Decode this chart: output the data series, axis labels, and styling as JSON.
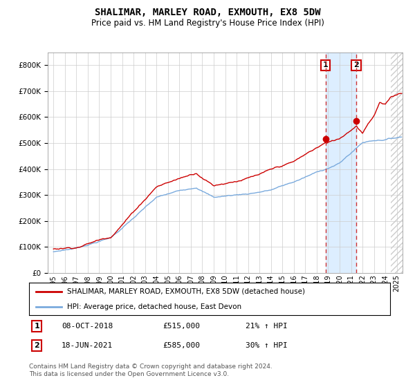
{
  "title": "SHALIMAR, MARLEY ROAD, EXMOUTH, EX8 5DW",
  "subtitle": "Price paid vs. HM Land Registry's House Price Index (HPI)",
  "legend_line1": "SHALIMAR, MARLEY ROAD, EXMOUTH, EX8 5DW (detached house)",
  "legend_line2": "HPI: Average price, detached house, East Devon",
  "sale1_label": "1",
  "sale1_date": "08-OCT-2018",
  "sale1_price": "£515,000",
  "sale1_pct": "21% ↑ HPI",
  "sale2_label": "2",
  "sale2_date": "18-JUN-2021",
  "sale2_price": "£585,000",
  "sale2_pct": "30% ↑ HPI",
  "footer": "Contains HM Land Registry data © Crown copyright and database right 2024.\nThis data is licensed under the Open Government Licence v3.0.",
  "sale1_year": 2018.77,
  "sale2_year": 2021.46,
  "sale1_value": 515000,
  "sale2_value": 585000,
  "hpi_color": "#7aaadd",
  "price_color": "#cc0000",
  "sale_marker_color": "#cc0000",
  "vline_color": "#cc3333",
  "shade_color": "#ddeeff",
  "hatch_color": "#cccccc",
  "ylim_min": 0,
  "ylim_max": 850000,
  "xlim_min": 1994.5,
  "xlim_max": 2025.5,
  "hatch_start": 2024.5
}
